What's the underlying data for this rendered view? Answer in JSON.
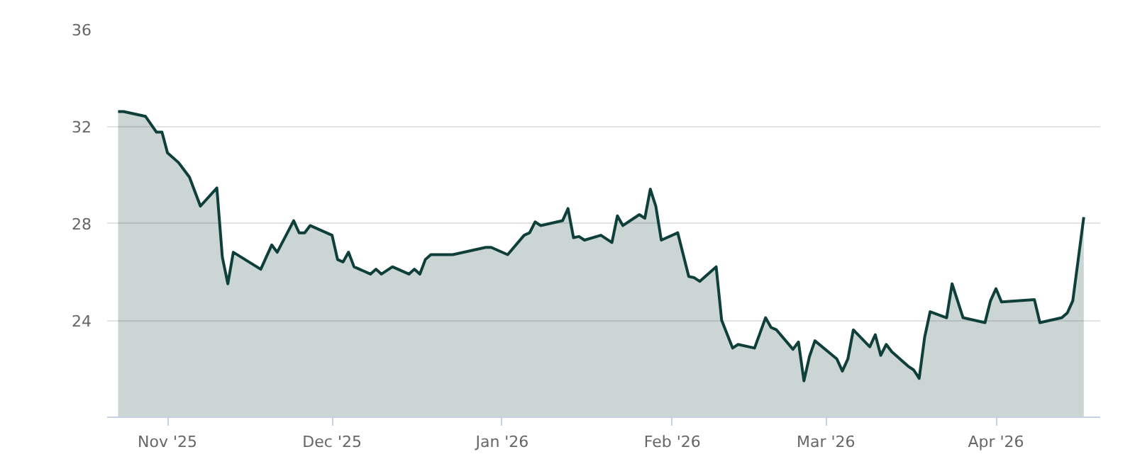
{
  "chart_data": {
    "type": "area",
    "x": [
      "2025-10-23",
      "2025-10-24",
      "2025-10-28",
      "2025-10-30",
      "2025-10-31",
      "2025-11-01",
      "2025-11-03",
      "2025-11-05",
      "2025-11-07",
      "2025-11-10",
      "2025-11-11",
      "2025-11-12",
      "2025-11-13",
      "2025-11-18",
      "2025-11-20",
      "2025-11-21",
      "2025-11-24",
      "2025-11-25",
      "2025-11-26",
      "2025-11-27",
      "2025-12-01",
      "2025-12-02",
      "2025-12-03",
      "2025-12-04",
      "2025-12-05",
      "2025-12-08",
      "2025-12-09",
      "2025-12-10",
      "2025-12-12",
      "2025-12-15",
      "2025-12-16",
      "2025-12-17",
      "2025-12-18",
      "2025-12-19",
      "2025-12-23",
      "2025-12-29",
      "2025-12-30",
      "2026-01-02",
      "2026-01-05",
      "2026-01-06",
      "2026-01-07",
      "2026-01-08",
      "2026-01-12",
      "2026-01-13",
      "2026-01-14",
      "2026-01-15",
      "2026-01-16",
      "2026-01-19",
      "2026-01-21",
      "2026-01-22",
      "2026-01-23",
      "2026-01-26",
      "2026-01-27",
      "2026-01-28",
      "2026-01-29",
      "2026-01-30",
      "2026-02-02",
      "2026-02-04",
      "2026-02-05",
      "2026-02-06",
      "2026-02-09",
      "2026-02-10",
      "2026-02-12",
      "2026-02-13",
      "2026-02-16",
      "2026-02-18",
      "2026-02-19",
      "2026-02-20",
      "2026-02-23",
      "2026-02-24",
      "2026-02-25",
      "2026-02-26",
      "2026-02-27",
      "2026-03-03",
      "2026-03-04",
      "2026-03-05",
      "2026-03-06",
      "2026-03-09",
      "2026-03-10",
      "2026-03-11",
      "2026-03-12",
      "2026-03-13",
      "2026-03-16",
      "2026-03-17",
      "2026-03-18",
      "2026-03-19",
      "2026-03-20",
      "2026-03-23",
      "2026-03-24",
      "2026-03-26",
      "2026-03-30",
      "2026-03-31",
      "2026-04-01",
      "2026-04-02",
      "2026-04-08",
      "2026-04-09",
      "2026-04-13",
      "2026-04-14",
      "2026-04-15",
      "2026-04-17"
    ],
    "series": [
      {
        "color": "#0f3f3a",
        "values": [
          32.6,
          32.6,
          32.4,
          31.75,
          31.75,
          30.9,
          30.5,
          29.9,
          28.7,
          29.45,
          26.6,
          25.5,
          26.8,
          26.1,
          27.1,
          26.8,
          28.1,
          27.6,
          27.6,
          27.9,
          27.5,
          26.5,
          26.4,
          26.8,
          26.2,
          25.9,
          26.1,
          25.9,
          26.2,
          25.9,
          26.1,
          25.9,
          26.5,
          26.7,
          26.7,
          27.0,
          27.0,
          26.7,
          27.5,
          27.6,
          28.05,
          27.9,
          28.1,
          28.6,
          27.4,
          27.45,
          27.3,
          27.5,
          27.2,
          28.3,
          27.9,
          28.35,
          28.2,
          29.4,
          28.7,
          27.3,
          27.6,
          25.8,
          25.75,
          25.6,
          26.2,
          24.0,
          22.85,
          23.0,
          22.85,
          24.1,
          23.7,
          23.6,
          22.8,
          23.1,
          21.5,
          22.5,
          23.15,
          22.4,
          21.9,
          22.4,
          23.6,
          22.9,
          23.4,
          22.55,
          23.0,
          22.7,
          22.1,
          21.95,
          21.6,
          23.3,
          24.35,
          24.1,
          25.5,
          24.1,
          23.9,
          24.8,
          25.3,
          24.75,
          24.85,
          23.9,
          24.1,
          24.3,
          24.8,
          28.25
        ]
      }
    ],
    "xlim": [
      "2025-10-21",
      "2026-04-20"
    ],
    "xticks": [
      {
        "value": "2025-11-01",
        "label": "Nov '25"
      },
      {
        "value": "2025-12-01",
        "label": "Dec '25"
      },
      {
        "value": "2026-01-01",
        "label": "Jan '26"
      },
      {
        "value": "2026-02-01",
        "label": "Feb '26"
      },
      {
        "value": "2026-03-01",
        "label": "Mar '26"
      },
      {
        "value": "2026-04-01",
        "label": "Apr '26"
      }
    ],
    "ylim": [
      20,
      36
    ],
    "yticks": [
      24,
      28,
      32,
      36
    ],
    "grid": "y"
  }
}
